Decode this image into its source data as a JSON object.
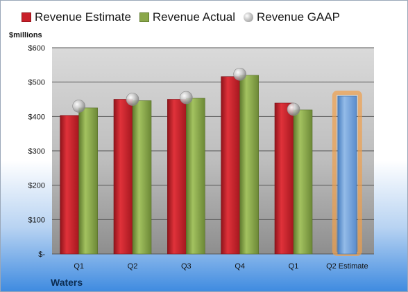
{
  "legend": {
    "estimate": "Revenue Estimate",
    "actual": "Revenue Actual",
    "gaap": "Revenue GAAP"
  },
  "units_label": "$millions",
  "company": "Waters",
  "chart_data": {
    "type": "bar",
    "categories": [
      "Q1",
      "Q2",
      "Q3",
      "Q4",
      "Q1",
      "Q2 Estimate"
    ],
    "series": [
      {
        "name": "Revenue Estimate",
        "values": [
          403,
          450,
          450,
          516,
          439,
          null
        ]
      },
      {
        "name": "Revenue Actual",
        "values": [
          425,
          446,
          453,
          520,
          419,
          459
        ]
      },
      {
        "name": "Revenue GAAP",
        "type": "scatter",
        "values": [
          430,
          450,
          455,
          523,
          421,
          null
        ]
      }
    ],
    "highlight_category": "Q2 Estimate",
    "ylim": [
      0,
      600
    ],
    "yticks": [
      0,
      100,
      200,
      300,
      400,
      500,
      600
    ],
    "ytick_labels": [
      "$-",
      "$100",
      "$200",
      "$300",
      "$400",
      "$500",
      "$600"
    ],
    "grid": true,
    "legend_position": "top",
    "colors": {
      "estimate": "#c8202a",
      "actual": "#8aa74a",
      "projected": "#6e9fd8",
      "highlight_glow": "#f0a04b",
      "gaap": "#b0b0b0"
    }
  }
}
